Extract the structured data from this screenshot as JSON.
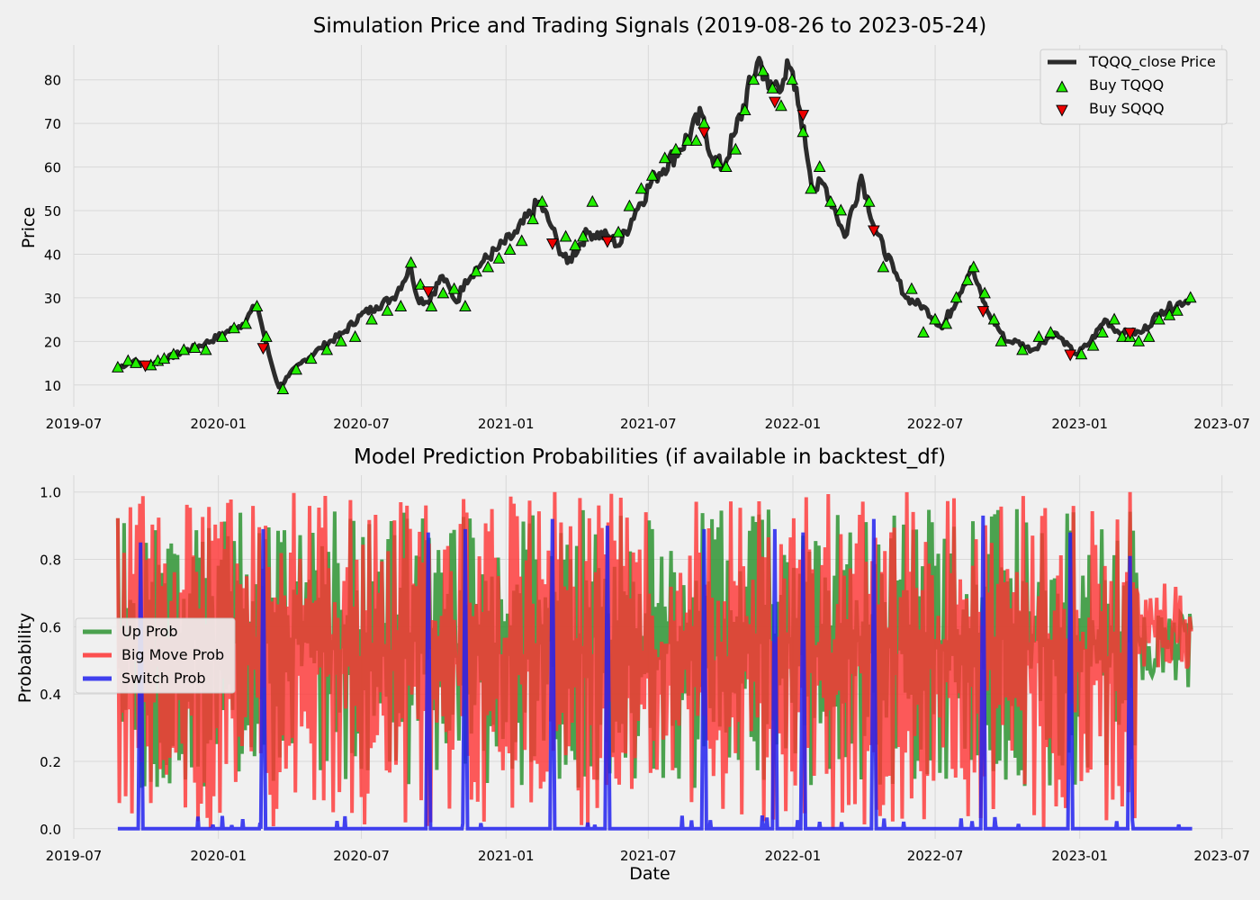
{
  "chart_data": [
    {
      "type": "line",
      "title": "Simulation Price and Trading Signals (2019-08-26 to 2023-05-24)",
      "xlabel": "",
      "ylabel": "Price",
      "x_range": [
        "2019-07-01",
        "2023-07-15"
      ],
      "ylim": [
        5,
        88
      ],
      "x_ticks": [
        "2019-07",
        "2020-01",
        "2020-07",
        "2021-01",
        "2021-07",
        "2022-01",
        "2022-07",
        "2023-01",
        "2023-07"
      ],
      "y_ticks": [
        10,
        20,
        30,
        40,
        50,
        60,
        70,
        80
      ],
      "grid": true,
      "legend_position": "top-right",
      "legend": [
        "TQQQ_close Price",
        "Buy TQQQ",
        "Buy SQQQ"
      ],
      "colors": {
        "price": "#2b2b2b",
        "buy_tqqq": "#22ee00",
        "buy_sqqq": "#ee0000"
      },
      "series": [
        {
          "name": "TQQQ_close Price",
          "x": [
            "2019-08-26",
            "2019-09-15",
            "2019-10-03",
            "2019-10-20",
            "2019-11-15",
            "2019-12-15",
            "2020-01-10",
            "2020-02-01",
            "2020-02-19",
            "2020-03-01",
            "2020-03-10",
            "2020-03-18",
            "2020-03-30",
            "2020-04-15",
            "2020-05-10",
            "2020-06-08",
            "2020-06-30",
            "2020-07-20",
            "2020-08-10",
            "2020-09-02",
            "2020-09-10",
            "2020-09-23",
            "2020-10-12",
            "2020-10-30",
            "2020-11-10",
            "2020-12-01",
            "2020-12-20",
            "2021-01-15",
            "2021-02-12",
            "2021-03-01",
            "2021-03-08",
            "2021-03-20",
            "2021-04-15",
            "2021-05-12",
            "2021-05-25",
            "2021-06-15",
            "2021-07-10",
            "2021-08-10",
            "2021-09-07",
            "2021-09-20",
            "2021-10-04",
            "2021-10-20",
            "2021-11-19",
            "2021-12-01",
            "2021-12-20",
            "2021-12-27",
            "2022-01-10",
            "2022-01-27",
            "2022-02-10",
            "2022-02-24",
            "2022-03-08",
            "2022-03-29",
            "2022-04-15",
            "2022-05-10",
            "2022-05-25",
            "2022-06-16",
            "2022-07-10",
            "2022-08-16",
            "2022-09-05",
            "2022-09-30",
            "2022-10-13",
            "2022-11-01",
            "2022-11-30",
            "2022-12-28",
            "2023-01-15",
            "2023-02-02",
            "2023-02-20",
            "2023-03-20",
            "2023-04-15",
            "2023-05-24"
          ],
          "values": [
            14,
            15.5,
            14.5,
            15.5,
            17.5,
            19.5,
            22,
            24,
            28.5,
            20,
            14,
            9.5,
            12,
            15,
            18.5,
            22,
            26,
            28,
            30,
            37,
            30,
            29,
            35,
            29,
            34,
            38,
            41,
            45,
            52,
            46,
            42,
            38,
            45,
            44,
            42,
            50,
            58,
            64,
            72,
            62,
            60,
            68,
            85,
            78,
            80,
            83,
            73,
            55,
            56,
            50,
            44,
            58,
            46,
            36,
            30,
            28,
            23,
            37,
            27,
            20,
            20,
            18,
            22,
            17,
            20,
            25,
            22,
            22,
            27,
            30
          ]
        }
      ],
      "markers": [
        {
          "name": "Buy TQQQ",
          "marker": "triangle-up",
          "x": [
            "2019-08-26",
            "2019-09-08",
            "2019-09-18",
            "2019-10-07",
            "2019-10-16",
            "2019-10-24",
            "2019-11-05",
            "2019-11-18",
            "2019-12-02",
            "2019-12-16",
            "2020-01-06",
            "2020-01-21",
            "2020-02-05",
            "2020-02-19",
            "2020-03-02",
            "2020-03-23",
            "2020-04-09",
            "2020-04-28",
            "2020-05-18",
            "2020-06-05",
            "2020-06-23",
            "2020-07-14",
            "2020-08-03",
            "2020-08-20",
            "2020-09-02",
            "2020-09-14",
            "2020-09-28",
            "2020-10-13",
            "2020-10-27",
            "2020-11-10",
            "2020-11-24",
            "2020-12-09",
            "2020-12-23",
            "2021-01-06",
            "2021-01-21",
            "2021-02-04",
            "2021-02-16",
            "2021-03-18",
            "2021-03-30",
            "2021-04-09",
            "2021-04-21",
            "2021-05-24",
            "2021-06-07",
            "2021-06-22",
            "2021-07-06",
            "2021-07-22",
            "2021-08-05",
            "2021-08-20",
            "2021-08-31",
            "2021-09-10",
            "2021-09-27",
            "2021-10-08",
            "2021-10-20",
            "2021-11-01",
            "2021-11-12",
            "2021-11-24",
            "2021-12-06",
            "2021-12-17",
            "2021-12-31",
            "2022-01-14",
            "2022-01-24",
            "2022-02-04",
            "2022-02-18",
            "2022-03-03",
            "2022-04-08",
            "2022-04-26",
            "2022-06-01",
            "2022-06-16",
            "2022-07-01",
            "2022-07-15",
            "2022-07-28",
            "2022-08-11",
            "2022-08-19",
            "2022-09-02",
            "2022-09-14",
            "2022-09-23",
            "2022-10-20",
            "2022-11-10",
            "2022-11-25",
            "2023-01-03",
            "2023-01-18",
            "2023-01-30",
            "2023-02-14",
            "2023-02-24",
            "2023-03-06",
            "2023-03-17",
            "2023-03-30",
            "2023-04-12",
            "2023-04-25",
            "2023-05-05",
            "2023-05-22"
          ],
          "values": [
            14,
            15.5,
            15,
            14.5,
            15.5,
            16,
            17,
            18,
            18.5,
            18,
            21,
            23,
            24,
            28,
            21,
            9,
            13.5,
            16,
            18,
            20,
            21,
            25,
            27,
            28,
            38,
            33,
            28,
            31,
            32,
            28,
            36,
            37,
            39,
            41,
            43,
            48,
            52,
            44,
            42,
            44,
            52,
            45,
            51,
            55,
            58,
            62,
            64,
            66,
            66,
            70,
            61,
            60,
            64,
            73,
            80,
            82,
            78,
            74,
            80,
            68,
            55,
            60,
            52,
            50,
            52,
            37,
            32,
            22,
            25,
            24,
            30,
            34,
            37,
            31,
            25,
            20,
            18,
            21,
            22,
            17,
            19,
            22,
            25,
            21,
            21,
            20,
            21,
            25,
            26,
            27,
            30
          ]
        },
        {
          "name": "Buy SQQQ",
          "marker": "triangle-down",
          "x": [
            "2019-09-30",
            "2020-02-27",
            "2020-09-24",
            "2021-03-01",
            "2021-05-10",
            "2021-09-10",
            "2021-12-09",
            "2022-01-14",
            "2022-04-14",
            "2022-08-31",
            "2022-12-20",
            "2023-03-06"
          ],
          "values": [
            14.5,
            18.5,
            31.5,
            42.5,
            43,
            68,
            75,
            72,
            45.5,
            27,
            17,
            22
          ]
        }
      ]
    },
    {
      "type": "line",
      "title": "Model Prediction Probabilities (if available in backtest_df)",
      "xlabel": "Date",
      "ylabel": "Probability",
      "x_range": [
        "2019-07-01",
        "2023-07-15"
      ],
      "ylim": [
        -0.03,
        1.05
      ],
      "x_ticks": [
        "2019-07",
        "2020-01",
        "2020-07",
        "2021-01",
        "2021-07",
        "2022-01",
        "2022-07",
        "2023-01",
        "2023-07"
      ],
      "y_ticks": [
        "0.0",
        "0.2",
        "0.4",
        "0.6",
        "0.8",
        "1.0"
      ],
      "grid": true,
      "legend_position": "center-left",
      "legend": [
        "Up Prob",
        "Big Move Prob",
        "Switch Prob"
      ],
      "colors": {
        "up": "#2e9432",
        "big": "#ff3333",
        "switch": "#2222ee"
      },
      "date_range": [
        "2019-08-26",
        "2023-05-24"
      ],
      "series": [
        {
          "name": "Up Prob",
          "range": [
            0.1,
            0.95
          ],
          "note_pattern": "oscillating"
        },
        {
          "name": "Big Move Prob",
          "range": [
            0.0,
            1.0
          ]
        },
        {
          "name": "Switch Prob",
          "spike_dates": [
            "2019-09-24",
            "2020-02-27",
            "2020-09-24",
            "2020-11-10",
            "2021-03-01",
            "2021-05-10",
            "2021-09-10",
            "2021-12-09",
            "2022-01-14",
            "2022-04-14",
            "2022-08-31",
            "2022-12-20",
            "2023-03-06"
          ],
          "spike_values": [
            0.85,
            0.89,
            0.88,
            0.89,
            0.92,
            0.9,
            0.89,
            0.89,
            0.88,
            0.92,
            0.93,
            0.88,
            0.81
          ]
        }
      ]
    }
  ]
}
